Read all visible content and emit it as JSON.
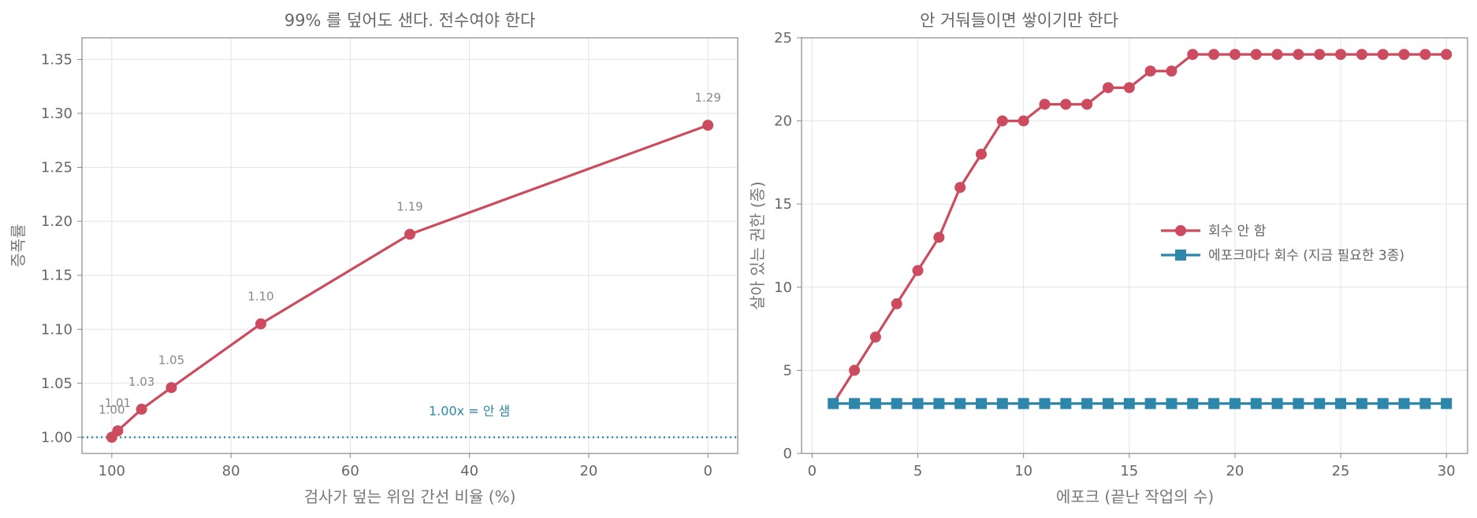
{
  "colors": {
    "red": "#cc4b5e",
    "blue": "#2e86ab",
    "text": "#666666"
  },
  "chart_data": [
    {
      "type": "line",
      "title": "99% 를 덮어도 샌다. 전수여야 한다",
      "xlabel": "검사가 덮는 위임 간선 비율 (%)",
      "ylabel": "증폭률",
      "xlim": [
        105,
        -5
      ],
      "ylim": [
        0.985,
        1.37
      ],
      "x_inverted": true,
      "grid": true,
      "xticks": [
        100,
        80,
        60,
        40,
        20,
        0
      ],
      "yticks": [
        1.0,
        1.05,
        1.1,
        1.15,
        1.2,
        1.25,
        1.3,
        1.35
      ],
      "xtick_labels": [
        "100",
        "80",
        "60",
        "40",
        "20",
        "0"
      ],
      "ytick_labels": [
        "1.00",
        "1.05",
        "1.10",
        "1.15",
        "1.20",
        "1.25",
        "1.30",
        "1.35"
      ],
      "series": [
        {
          "x": [
            100,
            99,
            95,
            90,
            75,
            50,
            0
          ],
          "y": [
            1.0,
            1.006,
            1.026,
            1.046,
            1.105,
            1.188,
            1.289
          ],
          "color": "#cc4b5e"
        }
      ],
      "data_labels": [
        "1.00",
        "1.01",
        "1.03",
        "1.05",
        "1.10",
        "1.19",
        "1.29"
      ],
      "reference_line": {
        "y": 1.0,
        "label": "1.00x = 안 샘",
        "label_x": 40,
        "color": "#2e86ab"
      }
    },
    {
      "type": "line",
      "title": "안 거둬들이면 쌓이기만 한다",
      "xlabel": "에포크 (끝난 작업의 수)",
      "ylabel": "살아 있는 권한 (종)",
      "xlim": [
        -0.5,
        31
      ],
      "ylim": [
        0,
        25
      ],
      "grid": true,
      "legend_position": "center-right",
      "xticks": [
        0,
        5,
        10,
        15,
        20,
        25,
        30
      ],
      "yticks": [
        0,
        5,
        10,
        15,
        20,
        25
      ],
      "xtick_labels": [
        "0",
        "5",
        "10",
        "15",
        "20",
        "25",
        "30"
      ],
      "ytick_labels": [
        "0",
        "5",
        "10",
        "15",
        "20",
        "25"
      ],
      "x": [
        1,
        2,
        3,
        4,
        5,
        6,
        7,
        8,
        9,
        10,
        11,
        12,
        13,
        14,
        15,
        16,
        17,
        18,
        19,
        20,
        21,
        22,
        23,
        24,
        25,
        26,
        27,
        28,
        29,
        30
      ],
      "series": [
        {
          "name": "회수 안 함",
          "marker": "circle",
          "color": "#cc4b5e",
          "values": [
            3,
            5,
            7,
            9,
            11,
            13,
            16,
            18,
            20,
            20,
            21,
            21,
            21,
            22,
            22,
            23,
            23,
            24,
            24,
            24,
            24,
            24,
            24,
            24,
            24,
            24,
            24,
            24,
            24,
            24
          ]
        },
        {
          "name": "에포크마다 회수 (지금 필요한 3종)",
          "marker": "square",
          "color": "#2e86ab",
          "values": [
            3,
            3,
            3,
            3,
            3,
            3,
            3,
            3,
            3,
            3,
            3,
            3,
            3,
            3,
            3,
            3,
            3,
            3,
            3,
            3,
            3,
            3,
            3,
            3,
            3,
            3,
            3,
            3,
            3,
            3
          ]
        }
      ]
    }
  ]
}
